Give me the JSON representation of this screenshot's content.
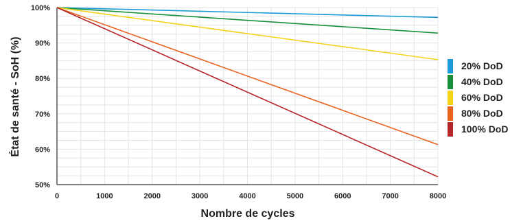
{
  "chart_data": {
    "type": "line",
    "xlabel": "Nombre de cycles",
    "ylabel": "État de santé - SoH (%)",
    "xlim": [
      0,
      8000
    ],
    "ylim": [
      50,
      100
    ],
    "x_ticks": [
      "0",
      "1000",
      "2000",
      "3000",
      "4000",
      "5000",
      "6000",
      "7000",
      "8000"
    ],
    "y_ticks": [
      "50%",
      "60%",
      "70%",
      "80%",
      "90%",
      "100%"
    ],
    "grid": true,
    "legend_position": "right",
    "series": [
      {
        "name": "20% DoD",
        "color": "#1a9ad6",
        "x": [
          0,
          8000
        ],
        "y": [
          100,
          97.2
        ]
      },
      {
        "name": "40% DoD",
        "color": "#1a8f3a",
        "x": [
          0,
          8000
        ],
        "y": [
          100,
          92.8
        ]
      },
      {
        "name": "60% DoD",
        "color": "#f2d21b",
        "x": [
          0,
          8000
        ],
        "y": [
          100,
          85.3
        ]
      },
      {
        "name": "80% DoD",
        "color": "#e8641e",
        "x": [
          0,
          8000
        ],
        "y": [
          100,
          61.3
        ]
      },
      {
        "name": "100% DoD",
        "color": "#b3262a",
        "x": [
          0,
          8000
        ],
        "y": [
          100,
          52.2
        ]
      }
    ]
  }
}
